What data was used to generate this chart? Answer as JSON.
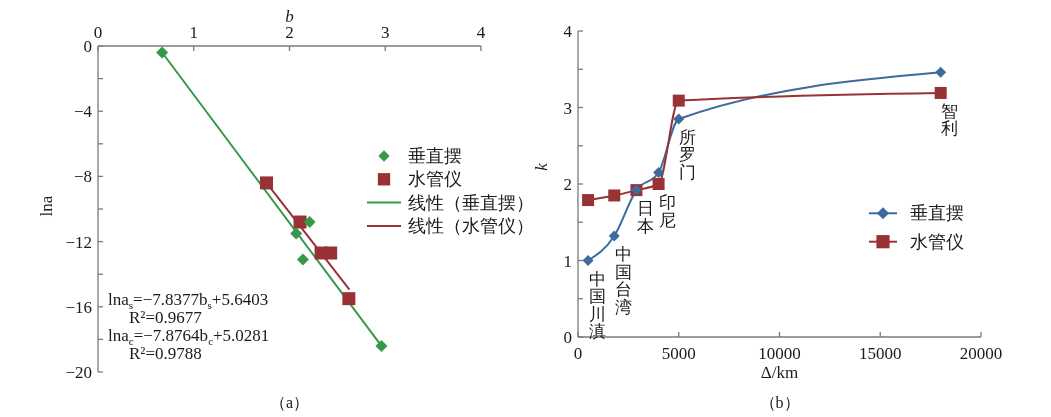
{
  "chart_data": [
    {
      "type": "scatter",
      "title": "（a）",
      "xlabel": "b",
      "ylabel": "lna",
      "xlim": [
        0,
        4
      ],
      "xticks": [
        0,
        1,
        2,
        3,
        4
      ],
      "ylim": [
        -20,
        0
      ],
      "yticks": [
        0,
        {
          "value": -2,
          "label": null
        },
        {
          "value": -4,
          "label": "−4"
        },
        {
          "value": -6,
          "label": null
        },
        {
          "value": -8,
          "label": "−8"
        },
        {
          "value": -10,
          "label": null
        },
        {
          "value": -12,
          "label": "−12"
        },
        {
          "value": -14,
          "label": null
        },
        {
          "value": -16,
          "label": "−16"
        },
        {
          "value": -18,
          "label": null
        },
        {
          "value": -20,
          "label": "−20"
        }
      ],
      "legend": "right",
      "series": [
        {
          "name": "垂直摆",
          "type": "scatter",
          "marker": "diamond",
          "color": "#36994a",
          "x": [
            0.67,
            2.21,
            2.07,
            2.14,
            2.96
          ],
          "values": [
            -0.4,
            -10.8,
            -11.5,
            -13.1,
            -18.4
          ]
        },
        {
          "name": "水管仪",
          "type": "scatter",
          "marker": "square",
          "color": "#983234",
          "x": [
            1.76,
            2.11,
            2.33,
            2.43,
            2.62
          ],
          "values": [
            -8.4,
            -10.8,
            -12.7,
            -12.7,
            -15.5
          ]
        },
        {
          "name": "线性（垂直摆）",
          "type": "line",
          "color": "#36994a",
          "x": [
            0.67,
            2.96
          ],
          "values": [
            -0.4,
            -18.4
          ]
        },
        {
          "name": "线性（水管仪）",
          "type": "line",
          "color": "#983234",
          "x": [
            1.76,
            2.62
          ],
          "values": [
            -8.4,
            -14.9
          ]
        }
      ],
      "annotations": [
        "lna$_{s}$=−7.8377b$_{s}$+5.6403",
        "R²=0.9677",
        "lna$_{c}$=−7.8764b$_{c}$+5.0281",
        "R²=0.9788"
      ]
    },
    {
      "type": "line",
      "title": "（b）",
      "xlabel": "Δ/km",
      "ylabel": "k",
      "xlim": [
        0,
        20000
      ],
      "xticks": [
        0,
        5000,
        10000,
        15000,
        20000
      ],
      "ylim": [
        0,
        4
      ],
      "yticks": [
        0,
        {
          "value": 0.5,
          "label": null
        },
        1,
        {
          "value": 1.5,
          "label": null
        },
        2,
        {
          "value": 2.5,
          "label": null
        },
        3,
        {
          "value": 3.5,
          "label": null
        },
        4
      ],
      "legend": "right",
      "x": [
        500,
        1800,
        2900,
        4000,
        5000,
        18000
      ],
      "series": [
        {
          "name": "垂直摆",
          "marker": "diamond",
          "color": "#3d6b9b",
          "values": [
            1.0,
            1.32,
            1.92,
            2.15,
            2.85,
            3.46
          ]
        },
        {
          "name": "水管仪",
          "marker": "square",
          "color": "#983234",
          "values": [
            1.79,
            1.85,
            1.92,
            2.0,
            3.09,
            3.19
          ]
        }
      ],
      "annotations": [
        {
          "text": "中国川滇",
          "x": 500,
          "y": 1.0
        },
        {
          "text": "中国台湾",
          "x": 1800,
          "y": 1.32
        },
        {
          "text": "日本",
          "x": 2900,
          "y": 1.92
        },
        {
          "text": "印尼",
          "x": 4000,
          "y": 2.0
        },
        {
          "text": "所罗门",
          "x": 5000,
          "y": 2.85
        },
        {
          "text": "智利",
          "x": 18000,
          "y": 3.19
        }
      ]
    }
  ]
}
